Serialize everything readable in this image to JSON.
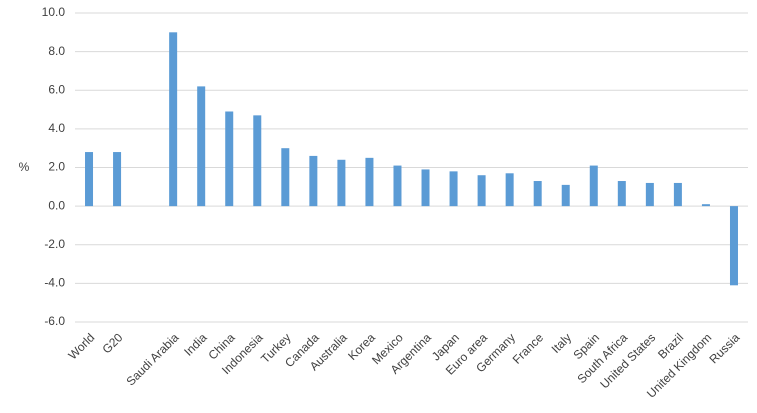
{
  "chart_data": {
    "type": "bar",
    "y_label": "%",
    "categories": [
      "World",
      "G20",
      null,
      "Saudi Arabia",
      "India",
      "China",
      "Indonesia",
      "Turkey",
      "Canada",
      "Australia",
      "Korea",
      "Mexico",
      "Argentina",
      "Japan",
      "Euro area",
      "Germany",
      "France",
      "Italy",
      "Spain",
      "South Africa",
      "United States",
      "Brazil",
      "United Kingdom",
      "Russia"
    ],
    "values": [
      2.8,
      2.8,
      null,
      9.0,
      6.2,
      4.9,
      4.7,
      3.0,
      2.6,
      2.4,
      2.5,
      2.1,
      1.9,
      1.8,
      1.6,
      1.7,
      1.3,
      1.1,
      2.1,
      1.3,
      1.2,
      1.2,
      0.1,
      -4.1
    ],
    "color": "#5b9bd5",
    "ylim": [
      -6,
      10
    ],
    "yticks": [
      {
        "value": -6,
        "label": "-6.0"
      },
      {
        "value": -4,
        "label": "-4.0"
      },
      {
        "value": -2,
        "label": "-2.0"
      },
      {
        "value": 0,
        "label": "0.0"
      },
      {
        "value": 2,
        "label": "2.0"
      },
      {
        "value": 4,
        "label": "4.0"
      },
      {
        "value": 6,
        "label": "6.0"
      },
      {
        "value": 8,
        "label": "8.0"
      },
      {
        "value": 10,
        "label": "10.0"
      }
    ],
    "grid": true
  }
}
